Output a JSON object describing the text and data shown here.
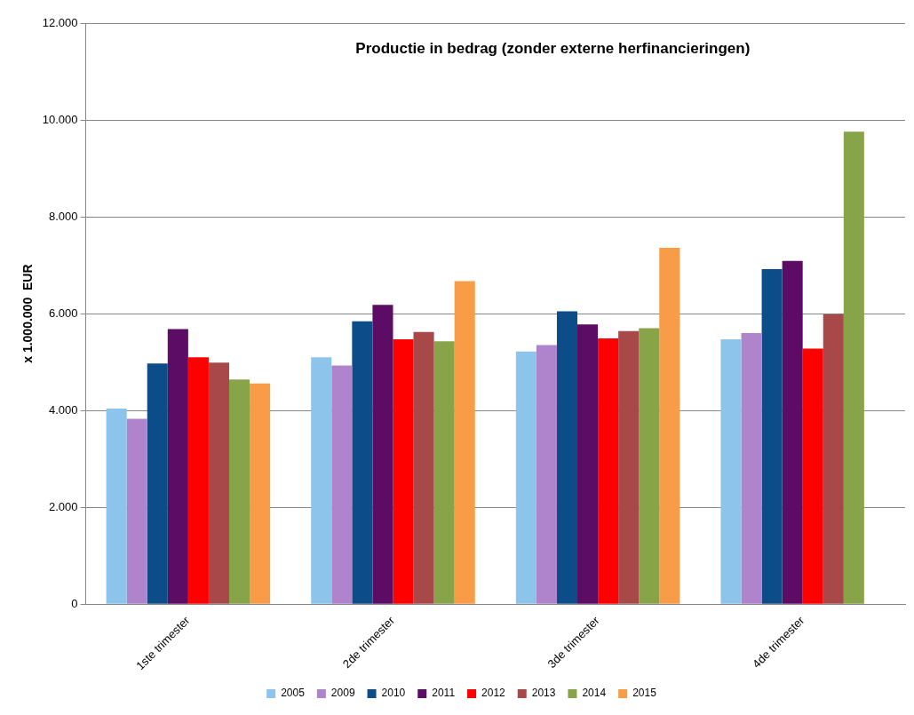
{
  "chart_data": {
    "type": "bar",
    "title": "Productie in bedrag (zonder externe herfinancieringen)",
    "ylabel": "x 1.000.000  EUR",
    "categories": [
      "1ste trimester",
      "2de trimester",
      "3de trimester",
      "4de trimester"
    ],
    "series": [
      {
        "name": "2005",
        "color": "#8cc4ec",
        "values": [
          4040,
          5100,
          5220,
          5470
        ]
      },
      {
        "name": "2009",
        "color": "#b084cc",
        "values": [
          3830,
          4930,
          5350,
          5600
        ]
      },
      {
        "name": "2010",
        "color": "#0c4c88",
        "values": [
          4970,
          5840,
          6050,
          6920
        ]
      },
      {
        "name": "2011",
        "color": "#5c0c64",
        "values": [
          5680,
          6180,
          5780,
          7090
        ]
      },
      {
        "name": "2012",
        "color": "#ff0000",
        "values": [
          5100,
          5470,
          5490,
          5280
        ]
      },
      {
        "name": "2013",
        "color": "#a84848",
        "values": [
          4990,
          5620,
          5640,
          5990
        ]
      },
      {
        "name": "2014",
        "color": "#88a448",
        "values": [
          4640,
          5430,
          5700,
          9760
        ]
      },
      {
        "name": "2015",
        "color": "#f89c48",
        "values": [
          4560,
          6670,
          7360,
          null
        ]
      }
    ],
    "ylim": [
      0,
      12000
    ],
    "yticks": [
      {
        "value": 0,
        "label": "0"
      },
      {
        "value": 2000,
        "label": "2.000"
      },
      {
        "value": 4000,
        "label": "4.000"
      },
      {
        "value": 6000,
        "label": "6.000"
      },
      {
        "value": 8000,
        "label": "8.000"
      },
      {
        "value": 10000,
        "label": "10.000"
      },
      {
        "value": 12000,
        "label": "12.000"
      }
    ],
    "grid": "y",
    "legend": "bottom"
  }
}
